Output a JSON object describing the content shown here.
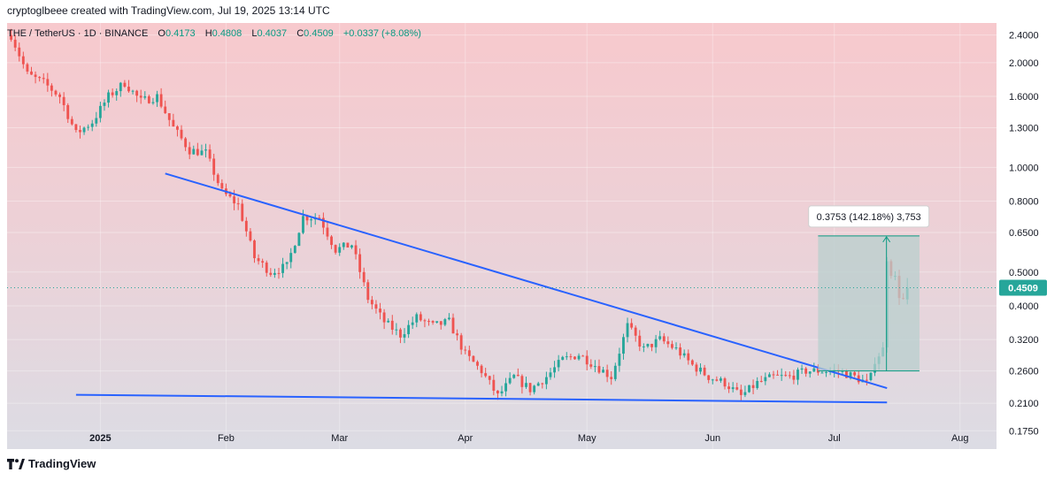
{
  "header": {
    "credit": "cryptoglbeee created with TradingView.com, Jul 19, 2025 13:14 UTC"
  },
  "symbol": {
    "name": "THE / TetherUS · 1D · BINANCE",
    "open_label": "O",
    "open": "0.4173",
    "high_label": "H",
    "high": "0.4808",
    "low_label": "L",
    "low": "0.4037",
    "close_label": "C",
    "close": "0.4509",
    "change": "+0.0337 (+8.08%)"
  },
  "footer": {
    "brand": "TradingView"
  },
  "colors": {
    "up": "#26a69a",
    "down": "#ef5350",
    "trendline": "#2962ff",
    "bg_top": "#f6c9cd",
    "bg_bottom": "#dcdce4",
    "price_badge": "#26a69a",
    "measure_box": "#b8cfcd"
  },
  "chart_data": {
    "type": "candlestick",
    "y_scale": "log",
    "ylim": [
      0.155,
      2.6
    ],
    "y_ticks": [
      2.4,
      2.0,
      1.6,
      1.3,
      1.0,
      0.8,
      0.65,
      0.5,
      0.4,
      0.32,
      0.26,
      0.21,
      0.175
    ],
    "y_tick_labels": [
      "2.4000",
      "2.0000",
      "1.6000",
      "1.3000",
      "1.0000",
      "0.8000",
      "0.6500",
      "0.5000",
      "0.4000",
      "0.3200",
      "0.2600",
      "0.2100",
      "0.1750"
    ],
    "x_range": [
      "2024-12-09",
      "2025-08-10"
    ],
    "x_ticks": [
      {
        "date": "2025-01-01",
        "label": "2025"
      },
      {
        "date": "2025-02-01",
        "label": "Feb"
      },
      {
        "date": "2025-03-01",
        "label": "Mar"
      },
      {
        "date": "2025-04-01",
        "label": "Apr"
      },
      {
        "date": "2025-05-01",
        "label": "May"
      },
      {
        "date": "2025-06-01",
        "label": "Jun"
      },
      {
        "date": "2025-07-01",
        "label": "Jul"
      },
      {
        "date": "2025-08-01",
        "label": "Aug"
      }
    ],
    "price_anchors": [
      [
        "2024-12-10",
        2.4
      ],
      [
        "2024-12-14",
        1.85
      ],
      [
        "2024-12-18",
        1.75
      ],
      [
        "2024-12-22",
        1.6
      ],
      [
        "2024-12-26",
        1.25
      ],
      [
        "2024-12-30",
        1.35
      ],
      [
        "2025-01-03",
        1.6
      ],
      [
        "2025-01-07",
        1.75
      ],
      [
        "2025-01-11",
        1.55
      ],
      [
        "2025-01-15",
        1.6
      ],
      [
        "2025-01-19",
        1.3
      ],
      [
        "2025-01-23",
        1.12
      ],
      [
        "2025-01-27",
        1.1
      ],
      [
        "2025-01-31",
        0.85
      ],
      [
        "2025-02-04",
        0.78
      ],
      [
        "2025-02-08",
        0.55
      ],
      [
        "2025-02-12",
        0.5
      ],
      [
        "2025-02-16",
        0.52
      ],
      [
        "2025-02-20",
        0.72
      ],
      [
        "2025-02-24",
        0.72
      ],
      [
        "2025-02-28",
        0.58
      ],
      [
        "2025-03-04",
        0.6
      ],
      [
        "2025-03-08",
        0.42
      ],
      [
        "2025-03-12",
        0.36
      ],
      [
        "2025-03-16",
        0.33
      ],
      [
        "2025-03-20",
        0.37
      ],
      [
        "2025-03-24",
        0.35
      ],
      [
        "2025-03-28",
        0.36
      ],
      [
        "2025-04-01",
        0.29
      ],
      [
        "2025-04-05",
        0.26
      ],
      [
        "2025-04-09",
        0.22
      ],
      [
        "2025-04-13",
        0.25
      ],
      [
        "2025-04-17",
        0.23
      ],
      [
        "2025-04-21",
        0.25
      ],
      [
        "2025-04-25",
        0.28
      ],
      [
        "2025-04-29",
        0.29
      ],
      [
        "2025-05-03",
        0.27
      ],
      [
        "2025-05-07",
        0.25
      ],
      [
        "2025-05-11",
        0.35
      ],
      [
        "2025-05-15",
        0.3
      ],
      [
        "2025-05-19",
        0.32
      ],
      [
        "2025-05-23",
        0.3
      ],
      [
        "2025-05-27",
        0.27
      ],
      [
        "2025-05-31",
        0.25
      ],
      [
        "2025-06-04",
        0.24
      ],
      [
        "2025-06-08",
        0.22
      ],
      [
        "2025-06-12",
        0.24
      ],
      [
        "2025-06-16",
        0.25
      ],
      [
        "2025-06-20",
        0.25
      ],
      [
        "2025-06-24",
        0.26
      ],
      [
        "2025-06-28",
        0.26
      ],
      [
        "2025-07-02",
        0.26
      ],
      [
        "2025-07-06",
        0.25
      ],
      [
        "2025-07-09",
        0.24
      ],
      [
        "2025-07-10",
        0.25
      ],
      [
        "2025-07-11",
        0.28
      ],
      [
        "2025-07-12",
        0.29
      ],
      [
        "2025-07-13",
        0.3
      ],
      [
        "2025-07-14",
        0.55
      ],
      [
        "2025-07-15",
        0.5
      ],
      [
        "2025-07-16",
        0.48
      ],
      [
        "2025-07-17",
        0.43
      ],
      [
        "2025-07-18",
        0.417
      ],
      [
        "2025-07-19",
        0.4509
      ]
    ],
    "trendlines": [
      {
        "name": "descending-resistance",
        "from": [
          "2025-01-17",
          0.96
        ],
        "to": [
          "2025-07-14",
          0.232
        ]
      },
      {
        "name": "horizontal-support",
        "from": [
          "2024-12-26",
          0.222
        ],
        "to": [
          "2025-07-14",
          0.211
        ]
      }
    ],
    "measure": {
      "from": [
        "2025-06-27",
        0.26
      ],
      "to": [
        "2025-07-22",
        0.6353
      ],
      "label": "0.3753 (142.18%) 3,753"
    },
    "current_price": {
      "value": 0.4509,
      "label": "0.4509"
    }
  }
}
